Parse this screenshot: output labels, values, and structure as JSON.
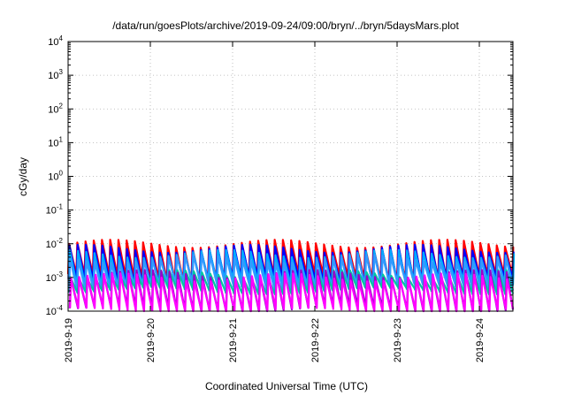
{
  "chart_data": {
    "type": "line",
    "title": "/data/run/goesPlots/archive/2019-09-24/09:00/bryn/../bryn/5daysMars.plot",
    "xlabel": "Coordinated Universal Time (UTC)",
    "ylabel": "cGy/day",
    "y_scale": "log",
    "ylim": [
      0.0001,
      10000
    ],
    "xlim": [
      "2019-09-19 00:00",
      "2019-09-24 09:00"
    ],
    "grid": true,
    "x_ticks": [
      {
        "value": 0,
        "label": "2019-9-19"
      },
      {
        "value": 1,
        "label": "2019-9-20"
      },
      {
        "value": 2,
        "label": "2019-9-21"
      },
      {
        "value": 3,
        "label": "2019-9-22"
      },
      {
        "value": 4,
        "label": "2019-9-23"
      },
      {
        "value": 5,
        "label": "2019-9-24"
      }
    ],
    "y_ticks": [
      {
        "exp": -4,
        "base": "10",
        "sup": "-4"
      },
      {
        "exp": -3,
        "base": "10",
        "sup": "-3"
      },
      {
        "exp": -2,
        "base": "10",
        "sup": "-2"
      },
      {
        "exp": -1,
        "base": "10",
        "sup": "-1"
      },
      {
        "exp": 0,
        "base": "10",
        "sup": "0"
      },
      {
        "exp": 1,
        "base": "10",
        "sup": "1"
      },
      {
        "exp": 2,
        "base": "10",
        "sup": "2"
      },
      {
        "exp": 3,
        "base": "10",
        "sup": "3"
      },
      {
        "exp": 4,
        "base": "10",
        "sup": "4"
      }
    ],
    "series": [
      {
        "color": "#ff0000",
        "peak_log": -2.0,
        "trough_log": -3.0
      },
      {
        "color": "#0000ff",
        "peak_log": -2.15,
        "trough_log": -3.1
      },
      {
        "color": "#00aaff",
        "peak_log": -2.3,
        "trough_log": -3.2
      },
      {
        "color": "#3399ff",
        "peak_log": -2.45,
        "trough_log": -3.3
      },
      {
        "color": "#00c8a0",
        "peak_log": -2.9,
        "trough_log": -3.4
      },
      {
        "color": "#9900cc",
        "peak_log": -2.9,
        "trough_log": -3.95
      },
      {
        "color": "#ff00ff",
        "peak_log": -3.0,
        "trough_log": -4.0
      }
    ],
    "sawtooth_period_days": 0.1,
    "data_gaps_days": [
      1.0,
      1.71,
      2.02
    ]
  }
}
